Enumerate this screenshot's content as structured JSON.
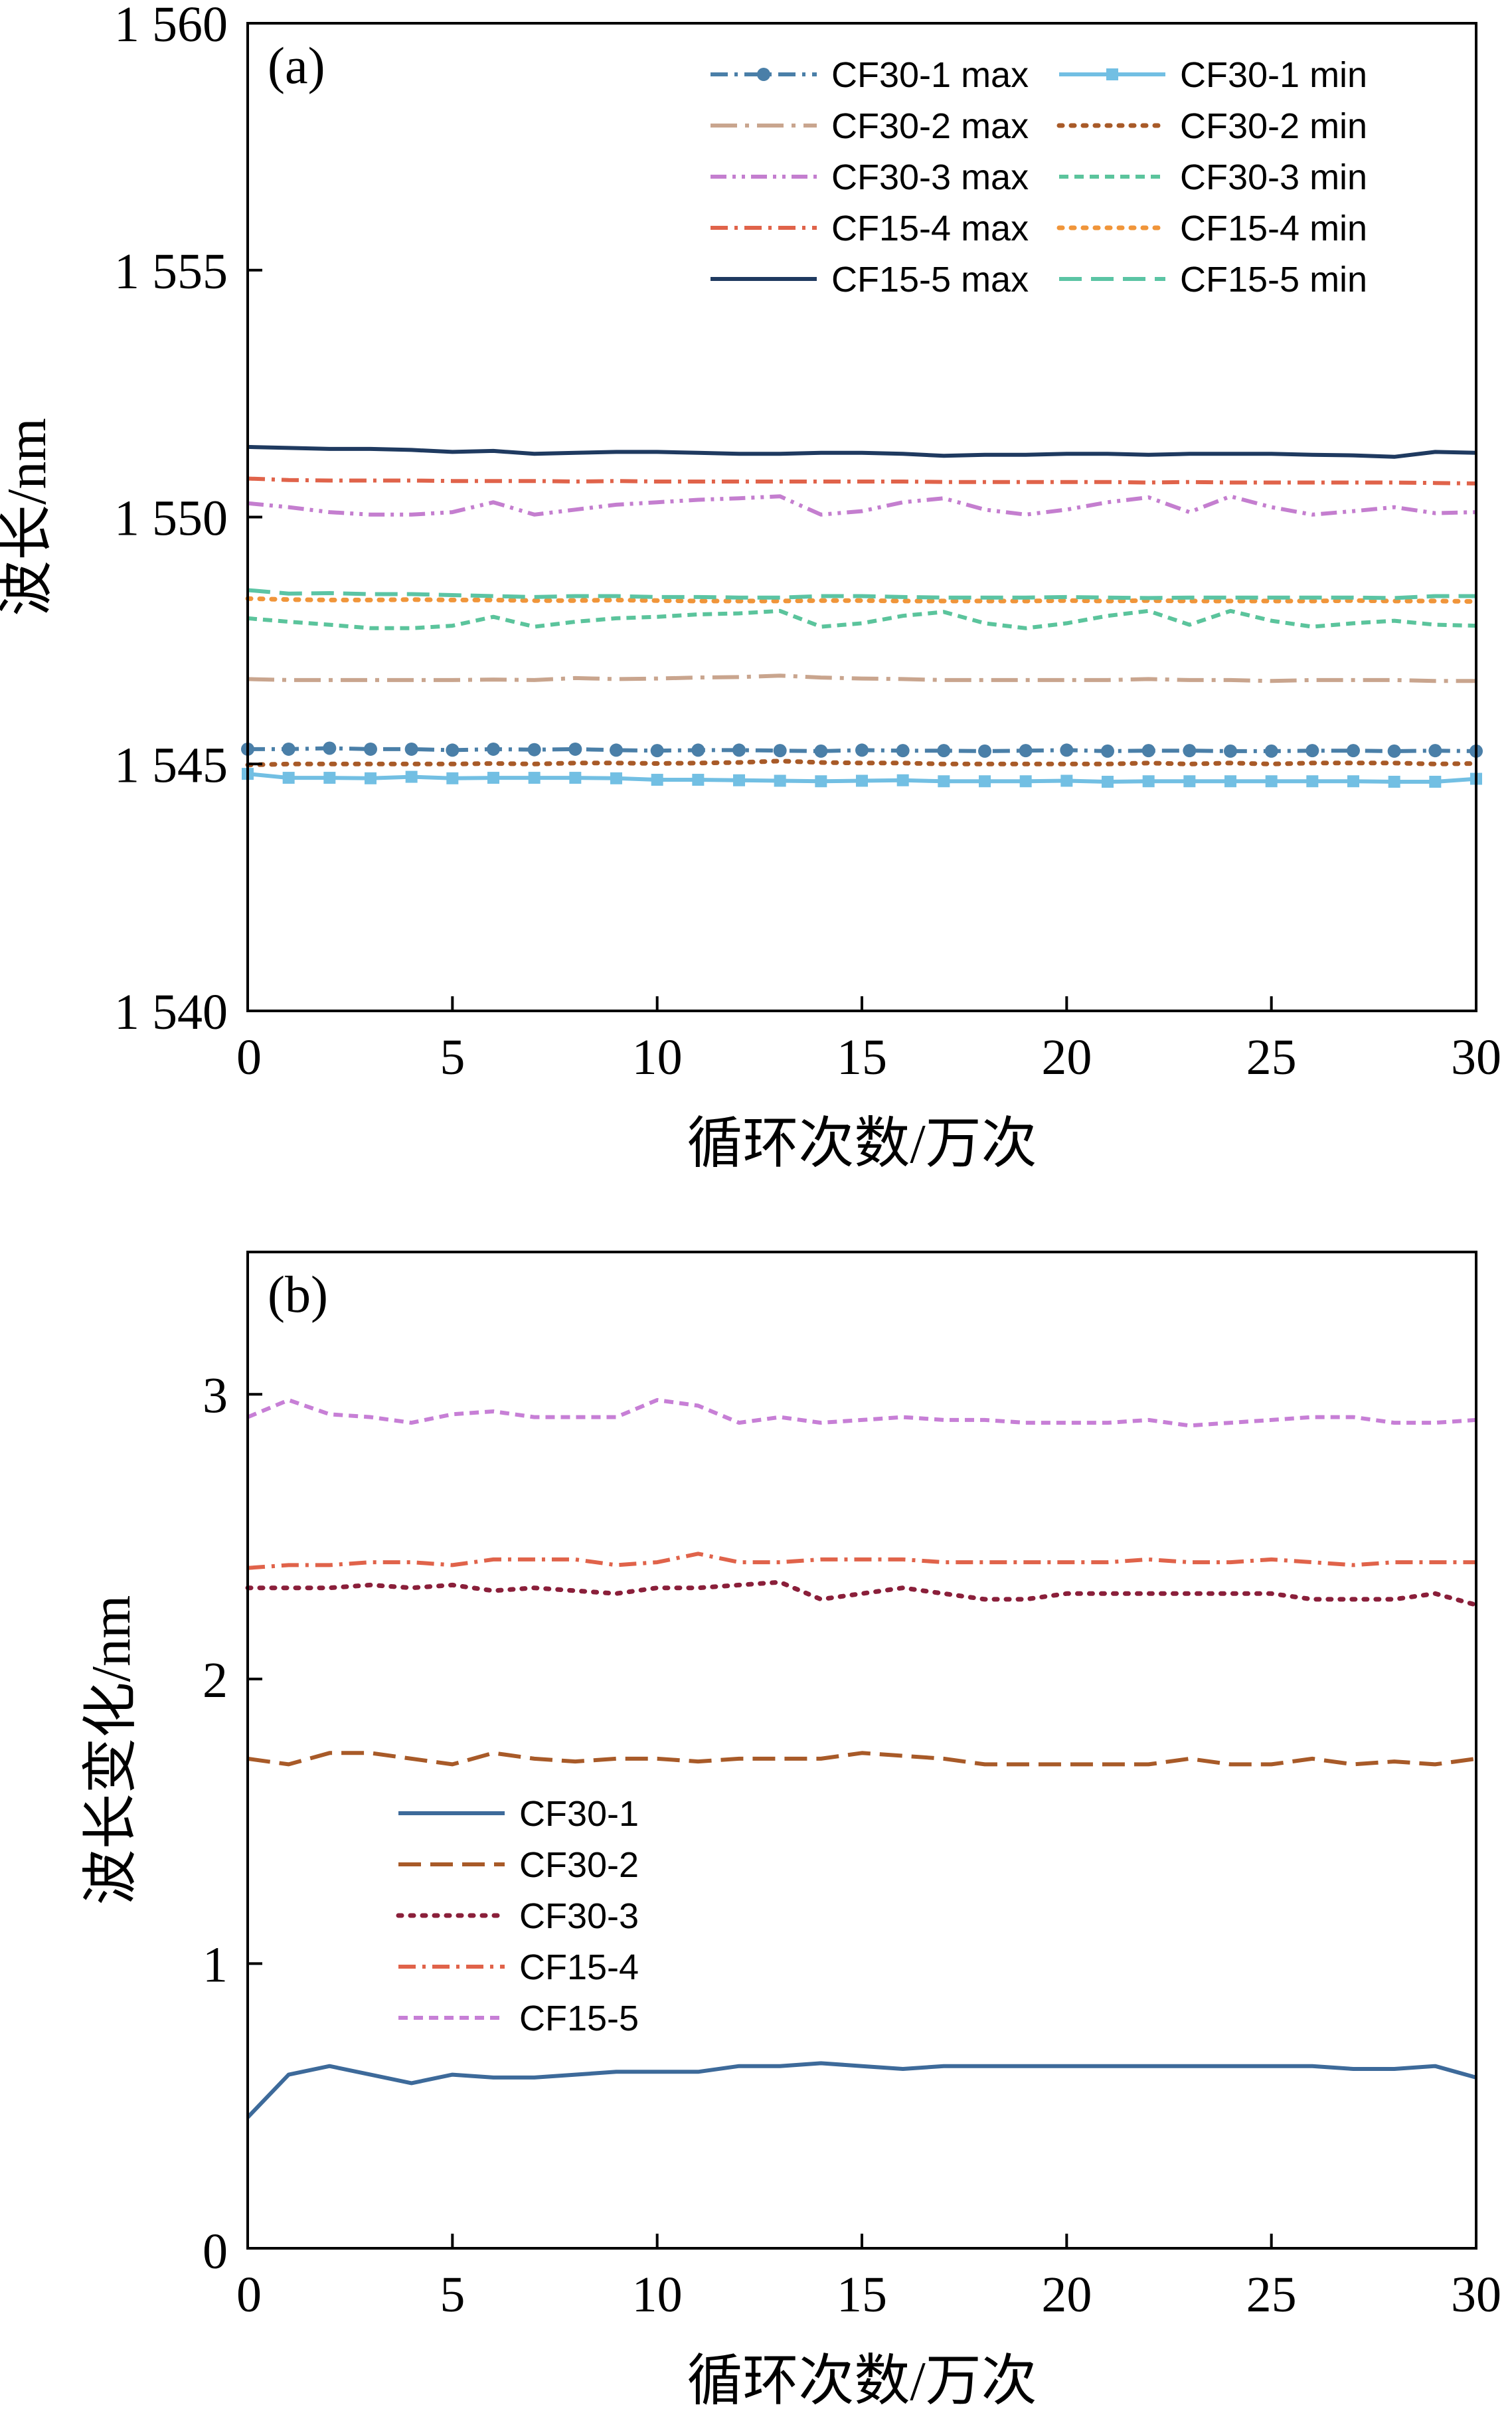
{
  "chart_data": [
    {
      "type": "line",
      "panel_label": "(a)",
      "xlabel": "循环次数/万次",
      "ylabel": "波长/nm",
      "xlim": [
        0,
        30
      ],
      "ylim": [
        1540,
        1560
      ],
      "xticks": [
        0,
        5,
        10,
        15,
        20,
        25,
        30
      ],
      "xtick_labels": [
        "0",
        "5",
        "10",
        "15",
        "20",
        "25",
        "30"
      ],
      "yticks": [
        1540,
        1545,
        1550,
        1555,
        1560
      ],
      "ytick_labels": [
        "1 540",
        "1 545",
        "1 550",
        "1 555",
        "1 560"
      ],
      "grid": false,
      "legend_position": "top-right",
      "legend_columns": 2,
      "x": [
        0,
        1,
        2,
        3,
        4,
        5,
        6,
        7,
        8,
        9,
        10,
        11,
        12,
        13,
        14,
        15,
        16,
        17,
        18,
        19,
        20,
        21,
        22,
        23,
        24,
        25,
        26,
        27,
        28,
        29,
        30
      ],
      "series": [
        {
          "name": "CF30-1 max",
          "color": "#4a7fa8",
          "dash": "dashdot",
          "marker": "circle",
          "values": [
            1545.3,
            1545.3,
            1545.32,
            1545.3,
            1545.3,
            1545.28,
            1545.3,
            1545.29,
            1545.3,
            1545.28,
            1545.27,
            1545.28,
            1545.28,
            1545.27,
            1545.26,
            1545.28,
            1545.27,
            1545.27,
            1545.26,
            1545.27,
            1545.28,
            1545.26,
            1545.27,
            1545.27,
            1545.26,
            1545.26,
            1545.27,
            1545.27,
            1545.26,
            1545.27,
            1545.26
          ]
        },
        {
          "name": "CF30-1 min",
          "color": "#72bfe3",
          "dash": "solid",
          "marker": "square",
          "values": [
            1544.8,
            1544.72,
            1544.72,
            1544.71,
            1544.74,
            1544.71,
            1544.72,
            1544.72,
            1544.72,
            1544.71,
            1544.68,
            1544.68,
            1544.67,
            1544.66,
            1544.65,
            1544.66,
            1544.67,
            1544.65,
            1544.65,
            1544.65,
            1544.66,
            1544.64,
            1544.65,
            1544.65,
            1544.65,
            1544.65,
            1544.65,
            1544.65,
            1544.64,
            1544.64,
            1544.7
          ]
        },
        {
          "name": "CF30-2 max",
          "color": "#c9a58e",
          "dash": "longdashdot",
          "values": [
            1546.72,
            1546.7,
            1546.7,
            1546.7,
            1546.7,
            1546.7,
            1546.71,
            1546.7,
            1546.74,
            1546.72,
            1546.73,
            1546.75,
            1546.76,
            1546.79,
            1546.75,
            1546.73,
            1546.72,
            1546.7,
            1546.7,
            1546.7,
            1546.7,
            1546.7,
            1546.72,
            1546.7,
            1546.7,
            1546.68,
            1546.7,
            1546.7,
            1546.7,
            1546.68,
            1546.68
          ]
        },
        {
          "name": "CF30-2 min",
          "color": "#a85a28",
          "dash": "dotted",
          "values": [
            1544.98,
            1545.0,
            1545.0,
            1545.0,
            1545.0,
            1545.0,
            1545.01,
            1545.0,
            1545.02,
            1545.02,
            1545.01,
            1545.02,
            1545.03,
            1545.06,
            1545.03,
            1545.02,
            1545.02,
            1545.0,
            1545.0,
            1545.0,
            1545.0,
            1545.0,
            1545.02,
            1545.0,
            1545.02,
            1545.0,
            1545.02,
            1545.02,
            1545.02,
            1545.0,
            1545.01
          ]
        },
        {
          "name": "CF30-3 max",
          "color": "#c47ecf",
          "dash": "dashdotdot",
          "values": [
            1550.28,
            1550.2,
            1550.1,
            1550.05,
            1550.05,
            1550.1,
            1550.3,
            1550.05,
            1550.15,
            1550.25,
            1550.3,
            1550.35,
            1550.38,
            1550.42,
            1550.05,
            1550.12,
            1550.3,
            1550.38,
            1550.15,
            1550.05,
            1550.15,
            1550.3,
            1550.4,
            1550.1,
            1550.42,
            1550.2,
            1550.05,
            1550.12,
            1550.2,
            1550.08,
            1550.1
          ]
        },
        {
          "name": "CF30-3 min",
          "color": "#5bc49c",
          "dash": "shortdash",
          "values": [
            1547.95,
            1547.88,
            1547.82,
            1547.75,
            1547.75,
            1547.8,
            1547.98,
            1547.78,
            1547.88,
            1547.95,
            1547.98,
            1548.03,
            1548.05,
            1548.1,
            1547.78,
            1547.85,
            1548.0,
            1548.08,
            1547.85,
            1547.75,
            1547.85,
            1548.0,
            1548.1,
            1547.82,
            1548.1,
            1547.9,
            1547.78,
            1547.85,
            1547.9,
            1547.82,
            1547.8
          ]
        },
        {
          "name": "CF15-4 max",
          "color": "#e0634a",
          "dash": "dashdot",
          "values": [
            1550.78,
            1550.75,
            1550.74,
            1550.74,
            1550.74,
            1550.73,
            1550.73,
            1550.73,
            1550.72,
            1550.73,
            1550.72,
            1550.72,
            1550.72,
            1550.72,
            1550.72,
            1550.72,
            1550.72,
            1550.71,
            1550.71,
            1550.71,
            1550.71,
            1550.71,
            1550.7,
            1550.71,
            1550.7,
            1550.7,
            1550.7,
            1550.7,
            1550.7,
            1550.69,
            1550.68
          ]
        },
        {
          "name": "CF15-4 min",
          "color": "#f0953a",
          "dash": "dotted",
          "values": [
            1548.35,
            1548.33,
            1548.32,
            1548.32,
            1548.33,
            1548.32,
            1548.32,
            1548.31,
            1548.31,
            1548.32,
            1548.31,
            1548.3,
            1548.3,
            1548.3,
            1548.31,
            1548.31,
            1548.3,
            1548.3,
            1548.3,
            1548.3,
            1548.31,
            1548.3,
            1548.31,
            1548.3,
            1548.3,
            1548.3,
            1548.3,
            1548.31,
            1548.3,
            1548.3,
            1548.29
          ]
        },
        {
          "name": "CF15-5 max",
          "color": "#1f3a60",
          "dash": "solid",
          "values": [
            1551.42,
            1551.4,
            1551.38,
            1551.38,
            1551.36,
            1551.32,
            1551.34,
            1551.28,
            1551.3,
            1551.32,
            1551.32,
            1551.3,
            1551.28,
            1551.28,
            1551.3,
            1551.3,
            1551.28,
            1551.24,
            1551.26,
            1551.26,
            1551.28,
            1551.28,
            1551.26,
            1551.28,
            1551.28,
            1551.28,
            1551.26,
            1551.25,
            1551.22,
            1551.32,
            1551.3
          ]
        },
        {
          "name": "CF15-5 min",
          "color": "#5bc4a4",
          "dash": "longdash",
          "values": [
            1548.52,
            1548.45,
            1548.46,
            1548.44,
            1548.44,
            1548.42,
            1548.4,
            1548.38,
            1548.4,
            1548.4,
            1548.38,
            1548.38,
            1548.37,
            1548.37,
            1548.4,
            1548.4,
            1548.38,
            1548.37,
            1548.37,
            1548.37,
            1548.38,
            1548.37,
            1548.36,
            1548.37,
            1548.37,
            1548.37,
            1548.37,
            1548.37,
            1548.36,
            1548.4,
            1548.4
          ]
        }
      ]
    },
    {
      "type": "line",
      "panel_label": "(b)",
      "xlabel": "循环次数/万次",
      "ylabel": "波长变化/nm",
      "xlim": [
        0,
        30
      ],
      "ylim": [
        0,
        3.5
      ],
      "xticks": [
        0,
        5,
        10,
        15,
        20,
        25,
        30
      ],
      "xtick_labels": [
        "0",
        "5",
        "10",
        "15",
        "20",
        "25",
        "30"
      ],
      "yticks": [
        1,
        2,
        3
      ],
      "ytick_labels": [
        "1",
        "2",
        "3"
      ],
      "grid": false,
      "legend_position": "left",
      "legend_columns": 1,
      "x": [
        0,
        1,
        2,
        3,
        4,
        5,
        6,
        7,
        8,
        9,
        10,
        11,
        12,
        13,
        14,
        15,
        16,
        17,
        18,
        19,
        20,
        21,
        22,
        23,
        24,
        25,
        26,
        27,
        28,
        29,
        30
      ],
      "series": [
        {
          "name": "CF30-1",
          "color": "#3d6a9a",
          "dash": "solid",
          "values": [
            0.46,
            0.61,
            0.64,
            0.61,
            0.58,
            0.61,
            0.6,
            0.6,
            0.61,
            0.62,
            0.62,
            0.62,
            0.64,
            0.64,
            0.65,
            0.64,
            0.63,
            0.64,
            0.64,
            0.64,
            0.64,
            0.64,
            0.64,
            0.64,
            0.64,
            0.64,
            0.64,
            0.63,
            0.63,
            0.64,
            0.6
          ]
        },
        {
          "name": "CF30-2",
          "color": "#a85a28",
          "dash": "longdash",
          "values": [
            1.72,
            1.7,
            1.74,
            1.74,
            1.72,
            1.7,
            1.74,
            1.72,
            1.71,
            1.72,
            1.72,
            1.71,
            1.72,
            1.72,
            1.72,
            1.74,
            1.73,
            1.72,
            1.7,
            1.7,
            1.7,
            1.7,
            1.7,
            1.72,
            1.7,
            1.7,
            1.72,
            1.7,
            1.71,
            1.7,
            1.72
          ]
        },
        {
          "name": "CF30-3",
          "color": "#8a1f3a",
          "dash": "dotted",
          "values": [
            2.32,
            2.32,
            2.32,
            2.33,
            2.32,
            2.33,
            2.31,
            2.32,
            2.31,
            2.3,
            2.32,
            2.32,
            2.33,
            2.34,
            2.28,
            2.3,
            2.32,
            2.3,
            2.28,
            2.28,
            2.3,
            2.3,
            2.3,
            2.3,
            2.3,
            2.3,
            2.28,
            2.28,
            2.28,
            2.3,
            2.26
          ]
        },
        {
          "name": "CF15-4",
          "color": "#e0634a",
          "dash": "dashdot",
          "values": [
            2.39,
            2.4,
            2.4,
            2.41,
            2.41,
            2.4,
            2.42,
            2.42,
            2.42,
            2.4,
            2.41,
            2.44,
            2.41,
            2.41,
            2.42,
            2.42,
            2.42,
            2.41,
            2.41,
            2.41,
            2.41,
            2.41,
            2.42,
            2.41,
            2.41,
            2.42,
            2.41,
            2.4,
            2.41,
            2.41,
            2.41
          ]
        },
        {
          "name": "CF15-5",
          "color": "#c77fd6",
          "dash": "shortdash",
          "values": [
            2.92,
            2.98,
            2.93,
            2.92,
            2.9,
            2.93,
            2.94,
            2.92,
            2.92,
            2.92,
            2.98,
            2.96,
            2.9,
            2.92,
            2.9,
            2.91,
            2.92,
            2.91,
            2.91,
            2.9,
            2.9,
            2.9,
            2.91,
            2.89,
            2.9,
            2.91,
            2.92,
            2.92,
            2.9,
            2.9,
            2.91
          ]
        }
      ]
    }
  ]
}
